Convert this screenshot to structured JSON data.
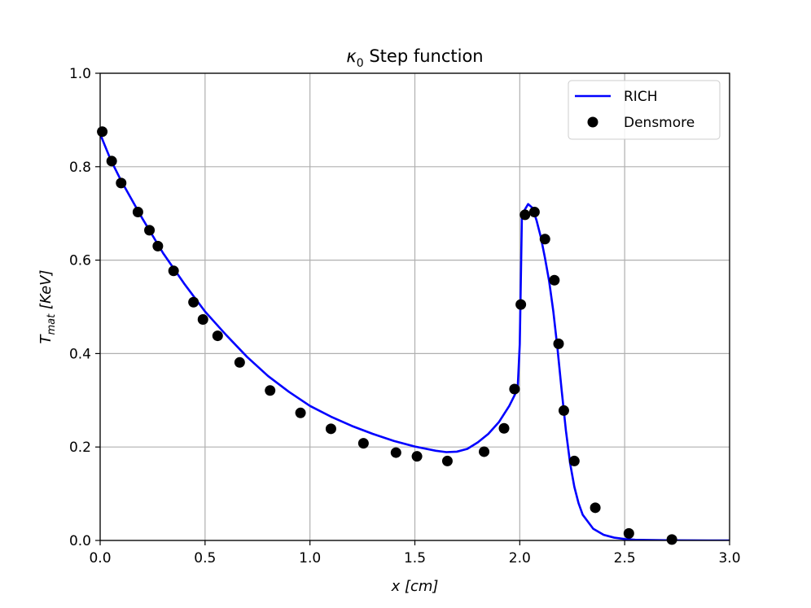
{
  "chart_data": {
    "type": "line",
    "title": "κ0 Step function",
    "title_main": "κ",
    "title_sub": "0",
    "title_rest": " Step function",
    "xlabel": "x [cm]",
    "xlabel_parts": {
      "var": "x",
      "unit": " [cm]"
    },
    "ylabel": "T_mat [KeV]",
    "ylabel_parts": {
      "var": "T",
      "sub": "mat",
      "unit": " [KeV]"
    },
    "xlim": [
      0.0,
      3.0
    ],
    "ylim": [
      0.0,
      1.0
    ],
    "xticks": [
      0.0,
      0.5,
      1.0,
      1.5,
      2.0,
      2.5,
      3.0
    ],
    "xtick_labels": [
      "0.0",
      "0.5",
      "1.0",
      "1.5",
      "2.0",
      "2.5",
      "3.0"
    ],
    "yticks": [
      0.0,
      0.2,
      0.4,
      0.6,
      0.8,
      1.0
    ],
    "ytick_labels": [
      "0.0",
      "0.2",
      "0.4",
      "0.6",
      "0.8",
      "1.0"
    ],
    "grid": true,
    "legend_position": "top-right",
    "series": [
      {
        "name": "RICH",
        "kind": "line",
        "color": "#0000ff",
        "x": [
          0.0,
          0.05,
          0.1,
          0.2,
          0.3,
          0.4,
          0.5,
          0.6,
          0.7,
          0.8,
          0.9,
          1.0,
          1.1,
          1.2,
          1.3,
          1.4,
          1.5,
          1.6,
          1.65,
          1.7,
          1.75,
          1.8,
          1.85,
          1.9,
          1.95,
          1.98,
          1.99,
          2.0,
          2.01,
          2.02,
          2.04,
          2.06,
          2.08,
          2.1,
          2.12,
          2.14,
          2.16,
          2.18,
          2.2,
          2.22,
          2.24,
          2.26,
          2.28,
          2.3,
          2.35,
          2.4,
          2.45,
          2.5,
          2.55,
          2.6,
          2.7,
          2.8,
          2.9,
          3.0
        ],
        "y": [
          0.87,
          0.815,
          0.77,
          0.69,
          0.615,
          0.55,
          0.49,
          0.44,
          0.393,
          0.352,
          0.318,
          0.288,
          0.265,
          0.245,
          0.228,
          0.213,
          0.201,
          0.192,
          0.189,
          0.19,
          0.196,
          0.21,
          0.228,
          0.253,
          0.288,
          0.315,
          0.325,
          0.42,
          0.69,
          0.705,
          0.72,
          0.712,
          0.685,
          0.65,
          0.605,
          0.555,
          0.49,
          0.41,
          0.32,
          0.235,
          0.165,
          0.115,
          0.08,
          0.055,
          0.025,
          0.012,
          0.006,
          0.003,
          0.0015,
          0.001,
          0.0003,
          0.0001,
          0.0,
          0.0
        ]
      },
      {
        "name": "Densmore",
        "kind": "scatter",
        "color": "#000000",
        "x": [
          0.01,
          0.055,
          0.1,
          0.18,
          0.235,
          0.275,
          0.35,
          0.445,
          0.49,
          0.56,
          0.665,
          0.81,
          0.955,
          1.1,
          1.255,
          1.41,
          1.51,
          1.655,
          1.83,
          1.925,
          1.975,
          2.005,
          2.025,
          2.07,
          2.12,
          2.165,
          2.185,
          2.21,
          2.26,
          2.36,
          2.52,
          2.725
        ],
        "y": [
          0.875,
          0.812,
          0.765,
          0.703,
          0.664,
          0.63,
          0.577,
          0.51,
          0.473,
          0.438,
          0.381,
          0.321,
          0.273,
          0.239,
          0.208,
          0.188,
          0.18,
          0.17,
          0.19,
          0.24,
          0.324,
          0.505,
          0.697,
          0.703,
          0.645,
          0.557,
          0.421,
          0.278,
          0.17,
          0.07,
          0.015,
          0.002
        ]
      }
    ]
  }
}
